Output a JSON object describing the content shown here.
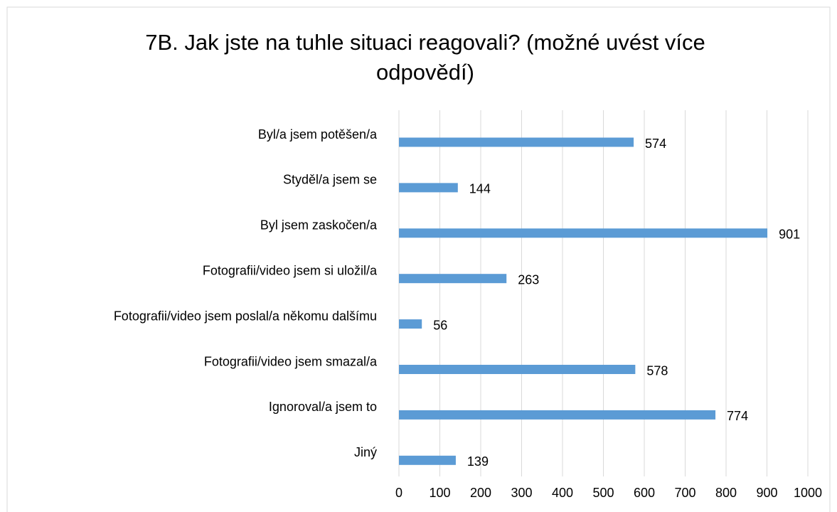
{
  "chart_data": {
    "type": "barh",
    "title": [
      "7B. Jak jste na tuhle situaci reagovali? (možné uvést více",
      "odpovědí)"
    ],
    "categories": [
      "Byl/a jsem potěšen/a",
      "Styděl/a jsem se",
      "Byl jsem zaskočen/a",
      "Fotografii/video jsem si uložil/a",
      "Fotografii/video jsem poslal/a někomu dalšímu",
      "Fotografii/video jsem smazal/a",
      "Ignoroval/a jsem to",
      "Jiný"
    ],
    "values": [
      574,
      144,
      901,
      263,
      56,
      578,
      774,
      139
    ],
    "color": "#5b9bd5",
    "xlim": [
      0,
      1000
    ],
    "xticks": [
      0,
      100,
      200,
      300,
      400,
      500,
      600,
      700,
      800,
      900,
      1000
    ],
    "grid": true
  }
}
